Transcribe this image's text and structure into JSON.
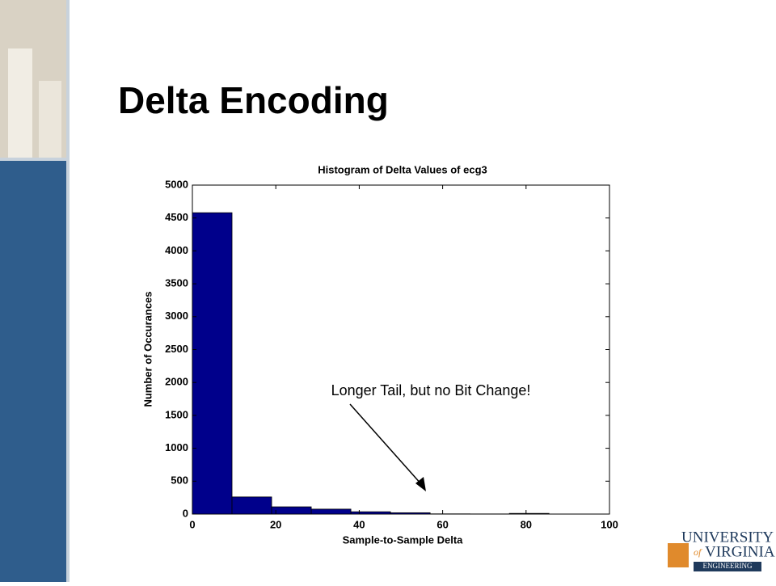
{
  "slide": {
    "title": "Delta Encoding",
    "annotation": "Longer Tail, but no Bit Change!",
    "logo": {
      "line1": "UNIVERSITY",
      "line2": "VIRGINIA",
      "of": "of",
      "line3": "ENGINEERING"
    }
  },
  "chart_data": {
    "type": "histogram",
    "title": "Histogram of Delta Values of ecg3",
    "x_label": "Sample-to-Sample Delta",
    "y_label": "Number of Occurances",
    "bins": [
      0,
      9.5,
      19,
      28.5,
      38,
      47.5,
      57,
      66.5,
      76,
      85.5,
      95
    ],
    "counts": [
      4580,
      260,
      110,
      75,
      35,
      20,
      3,
      2,
      10,
      0
    ],
    "color": "#00008b",
    "xlim": [
      0,
      100
    ],
    "xticks": [
      0,
      20,
      40,
      60,
      80,
      100
    ],
    "ylim": [
      0,
      5000
    ],
    "yticks": [
      0,
      500,
      1000,
      1500,
      2000,
      2500,
      3000,
      3500,
      4000,
      4500,
      5000
    ]
  }
}
